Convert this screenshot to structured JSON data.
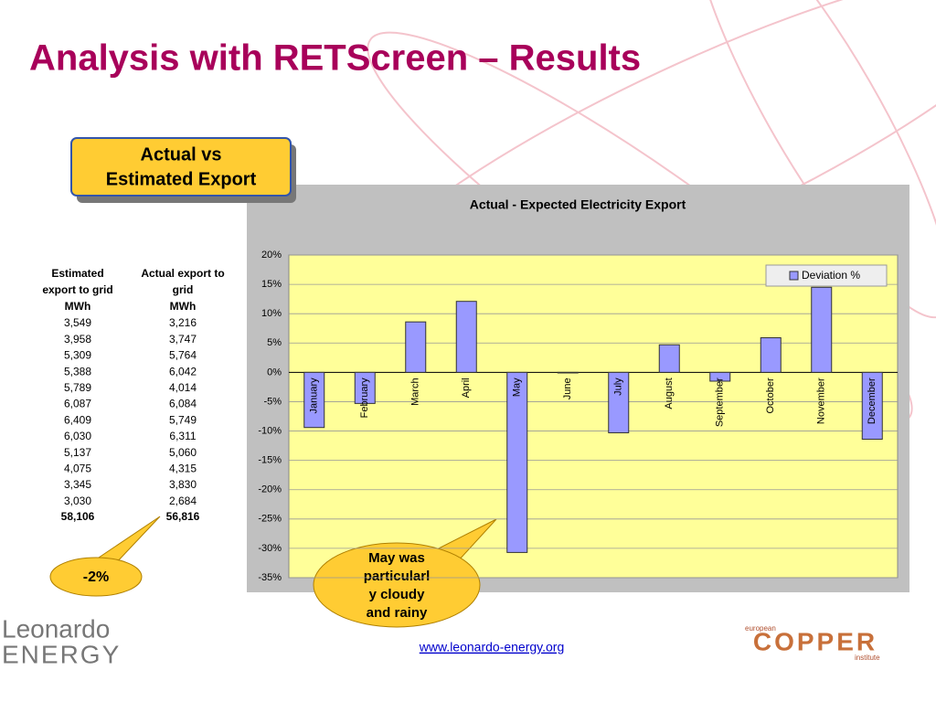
{
  "title": "Analysis with RETScreen – Results",
  "callout_box": {
    "lines": [
      "Actual vs",
      "Estimated Export"
    ]
  },
  "table": {
    "headers": [
      [
        "Estimated",
        "export to grid",
        "MWh"
      ],
      [
        "Actual export to",
        "grid",
        "MWh"
      ]
    ],
    "rows": [
      [
        "3,549",
        "3,216"
      ],
      [
        "3,958",
        "3,747"
      ],
      [
        "5,309",
        "5,764"
      ],
      [
        "5,388",
        "6,042"
      ],
      [
        "5,789",
        "4,014"
      ],
      [
        "6,087",
        "6,084"
      ],
      [
        "6,409",
        "5,749"
      ],
      [
        "6,030",
        "6,311"
      ],
      [
        "5,137",
        "5,060"
      ],
      [
        "4,075",
        "4,315"
      ],
      [
        "3,345",
        "3,830"
      ],
      [
        "3,030",
        "2,684"
      ]
    ],
    "totals": [
      "58,106",
      "56,816"
    ]
  },
  "callout_difference": "-2%",
  "callout_may": [
    "May was",
    "particularl",
    "y cloudy",
    "and rainy"
  ],
  "footer": {
    "link": "www.leonardo-energy.org",
    "logo_left": [
      "Leonardo",
      "ENERGY"
    ],
    "logo_right": [
      "european",
      "COPPER",
      "institute"
    ]
  },
  "chart_data": {
    "type": "bar",
    "title": "Actual - Expected Electricity Export",
    "categories": [
      "January",
      "February",
      "March",
      "April",
      "May",
      "June",
      "July",
      "August",
      "September",
      "October",
      "November",
      "December"
    ],
    "series": [
      {
        "name": "Deviation %",
        "color": "#9999ff",
        "values": [
          -9.4,
          -5.3,
          8.6,
          12.1,
          -30.7,
          -0.1,
          -10.3,
          4.7,
          -1.5,
          5.9,
          14.5,
          -11.4
        ]
      }
    ],
    "ylim": [
      -35,
      20
    ],
    "yticks": [
      {
        "value": -35,
        "label": "-35%"
      },
      {
        "value": -30,
        "label": "-30%"
      },
      {
        "value": -25,
        "label": "-25%"
      },
      {
        "value": -20,
        "label": "-20%"
      },
      {
        "value": -15,
        "label": "-15%"
      },
      {
        "value": -10,
        "label": "-10%"
      },
      {
        "value": -5,
        "label": "-5%"
      },
      {
        "value": 0,
        "label": "0%"
      },
      {
        "value": 5,
        "label": "5%"
      },
      {
        "value": 10,
        "label": "10%"
      },
      {
        "value": 15,
        "label": "15%"
      },
      {
        "value": 20,
        "label": "20%"
      }
    ],
    "grid": true,
    "legend": "top-right"
  }
}
